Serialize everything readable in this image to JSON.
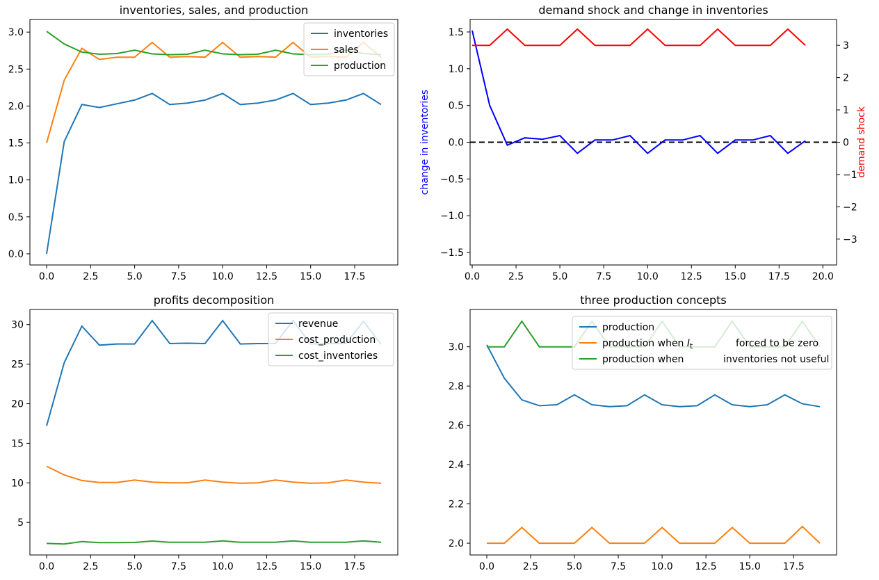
{
  "figure": {
    "background": "#ffffff"
  },
  "chart_data": [
    {
      "id": "inventories-sales-production",
      "type": "line",
      "title": "inventories, sales, and production",
      "xlabel": "",
      "ylabel": "",
      "grid": false,
      "legend_position": "upper right",
      "x": [
        0,
        1,
        2,
        3,
        4,
        5,
        6,
        7,
        8,
        9,
        10,
        11,
        12,
        13,
        14,
        15,
        16,
        17,
        18,
        19
      ],
      "xlim": [
        -0.95,
        19.95
      ],
      "ylim": [
        -0.151,
        3.171
      ],
      "xticks": {
        "values": [
          0,
          2.5,
          5,
          7.5,
          10,
          12.5,
          15,
          17.5
        ],
        "labels": [
          "0.0",
          "2.5",
          "5.0",
          "7.5",
          "10.0",
          "12.5",
          "15.0",
          "17.5"
        ]
      },
      "yticks": {
        "values": [
          0,
          0.5,
          1,
          1.5,
          2,
          2.5,
          3
        ],
        "labels": [
          "0.0",
          "0.5",
          "1.0",
          "1.5",
          "2.0",
          "2.5",
          "3.0"
        ]
      },
      "series": [
        {
          "name": "inventories",
          "color": "#1f77b4",
          "values": [
            0.0,
            1.52,
            2.02,
            1.98,
            2.03,
            2.08,
            2.17,
            2.02,
            2.04,
            2.08,
            2.17,
            2.02,
            2.04,
            2.08,
            2.17,
            2.02,
            2.04,
            2.08,
            2.17,
            2.02
          ]
        },
        {
          "name": "sales",
          "color": "#ff7f0e",
          "values": [
            1.5,
            2.35,
            2.78,
            2.63,
            2.66,
            2.66,
            2.86,
            2.66,
            2.67,
            2.66,
            2.86,
            2.66,
            2.67,
            2.66,
            2.86,
            2.66,
            2.67,
            2.66,
            2.86,
            2.66
          ]
        },
        {
          "name": "production",
          "color": "#2ca02c",
          "values": [
            3.01,
            2.84,
            2.73,
            2.7,
            2.71,
            2.755,
            2.705,
            2.695,
            2.7,
            2.755,
            2.705,
            2.695,
            2.7,
            2.755,
            2.705,
            2.695,
            2.7,
            2.755,
            2.71,
            2.695
          ]
        }
      ],
      "legend": {
        "entries": [
          {
            "segments": [
              {
                "t": "inventories"
              }
            ]
          },
          {
            "segments": [
              {
                "t": "sales"
              }
            ]
          },
          {
            "segments": [
              {
                "t": "production"
              }
            ]
          }
        ]
      }
    },
    {
      "id": "demand-shock-change-in-inventories",
      "type": "line",
      "title": "demand shock and change in inventories",
      "ylabel_left": {
        "text": "change in inventories",
        "color": "#0000ff"
      },
      "ylabel_right": {
        "text": "demand shock",
        "color": "#ff0000"
      },
      "grid": false,
      "x": [
        0,
        1,
        2,
        3,
        4,
        5,
        6,
        7,
        8,
        9,
        10,
        11,
        12,
        13,
        14,
        15,
        16,
        17,
        18,
        19
      ],
      "xlim": [
        -0.12,
        20.78
      ],
      "ylim": [
        -1.67,
        1.67
      ],
      "ylim_right": [
        -3.8,
        3.8
      ],
      "xticks": {
        "values": [
          0,
          2.5,
          5,
          7.5,
          10,
          12.5,
          15,
          17.5,
          20
        ],
        "labels": [
          "0.0",
          "2.5",
          "5.0",
          "7.5",
          "10.0",
          "12.5",
          "15.0",
          "17.5",
          "20.0"
        ]
      },
      "yticks": {
        "values": [
          -1.5,
          -1,
          -0.5,
          0,
          0.5,
          1,
          1.5
        ],
        "labels": [
          "−1.5",
          "−1.0",
          "−0.5",
          "0.0",
          "0.5",
          "1.0",
          "1.5"
        ]
      },
      "yticks_right": {
        "values": [
          -3,
          -2,
          -1,
          0,
          1,
          2,
          3
        ],
        "labels": [
          "−3",
          "−2",
          "−1",
          "0",
          "1",
          "2",
          "3"
        ]
      },
      "series": [
        {
          "name": "zero line",
          "color": "#000000",
          "dash": true,
          "span": "full",
          "value": 0
        },
        {
          "name": "change in inventories",
          "color": "#0000ff",
          "values": [
            1.52,
            0.5,
            -0.04,
            0.06,
            0.04,
            0.09,
            -0.15,
            0.03,
            0.03,
            0.09,
            -0.15,
            0.03,
            0.03,
            0.09,
            -0.15,
            0.03,
            0.03,
            0.09,
            -0.15,
            0.02
          ]
        },
        {
          "name": "demand shock",
          "color": "#ff0000",
          "axis": "right",
          "values": [
            3,
            3,
            3.5,
            3,
            3,
            3,
            3.5,
            3,
            3,
            3,
            3.5,
            3,
            3,
            3,
            3.5,
            3,
            3,
            3,
            3.5,
            3
          ]
        }
      ]
    },
    {
      "id": "profits-decomposition",
      "type": "line",
      "title": "profits decomposition",
      "grid": false,
      "legend_position": "upper right",
      "x": [
        0,
        1,
        2,
        3,
        4,
        5,
        6,
        7,
        8,
        9,
        10,
        11,
        12,
        13,
        14,
        15,
        16,
        17,
        18,
        19
      ],
      "xlim": [
        -0.95,
        19.95
      ],
      "ylim": [
        0.89,
        31.91
      ],
      "xticks": {
        "values": [
          0,
          2.5,
          5,
          7.5,
          10,
          12.5,
          15,
          17.5
        ],
        "labels": [
          "0.0",
          "2.5",
          "5.0",
          "7.5",
          "10.0",
          "12.5",
          "15.0",
          "17.5"
        ]
      },
      "yticks": {
        "values": [
          5,
          10,
          15,
          20,
          25,
          30
        ],
        "labels": [
          "5",
          "10",
          "15",
          "20",
          "25",
          "30"
        ]
      },
      "series": [
        {
          "name": "revenue",
          "color": "#1f77b4",
          "values": [
            17.2,
            25.2,
            29.8,
            27.4,
            27.55,
            27.55,
            30.5,
            27.6,
            27.65,
            27.6,
            30.5,
            27.55,
            27.6,
            27.6,
            30.5,
            27.55,
            27.6,
            27.6,
            30.4,
            27.5
          ]
        },
        {
          "name": "cost_production",
          "color": "#ff7f0e",
          "values": [
            12.1,
            11.0,
            10.3,
            10.05,
            10.05,
            10.35,
            10.1,
            10.0,
            10.0,
            10.35,
            10.1,
            9.95,
            10.0,
            10.35,
            10.1,
            9.95,
            10.0,
            10.35,
            10.1,
            9.95
          ]
        },
        {
          "name": "cost_inventories",
          "color": "#2ca02c",
          "values": [
            2.35,
            2.28,
            2.58,
            2.45,
            2.45,
            2.47,
            2.65,
            2.5,
            2.5,
            2.5,
            2.67,
            2.5,
            2.5,
            2.5,
            2.67,
            2.5,
            2.5,
            2.5,
            2.67,
            2.5
          ]
        }
      ],
      "legend": {
        "entries": [
          {
            "segments": [
              {
                "t": "revenue"
              }
            ]
          },
          {
            "segments": [
              {
                "t": "cost_production"
              }
            ]
          },
          {
            "segments": [
              {
                "t": "cost_inventories"
              }
            ]
          }
        ]
      }
    },
    {
      "id": "three-production-concepts",
      "type": "line",
      "title": "three production concepts",
      "grid": false,
      "legend_position": "upper center",
      "x": [
        0,
        1,
        2,
        3,
        4,
        5,
        6,
        7,
        8,
        9,
        10,
        11,
        12,
        13,
        14,
        15,
        16,
        17,
        18,
        19
      ],
      "xlim": [
        -0.95,
        19.95
      ],
      "ylim": [
        1.94,
        3.19
      ],
      "xticks": {
        "values": [
          0,
          2.5,
          5,
          7.5,
          10,
          12.5,
          15,
          17.5
        ],
        "labels": [
          "0.0",
          "2.5",
          "5.0",
          "7.5",
          "10.0",
          "12.5",
          "15.0",
          "17.5"
        ]
      },
      "yticks": {
        "values": [
          2.0,
          2.2,
          2.4,
          2.6,
          2.8,
          3.0
        ],
        "labels": [
          "2.0",
          "2.2",
          "2.4",
          "2.6",
          "2.8",
          "3.0"
        ]
      },
      "series": [
        {
          "name": "production",
          "color": "#1f77b4",
          "values": [
            3.01,
            2.84,
            2.73,
            2.7,
            2.705,
            2.755,
            2.705,
            2.695,
            2.7,
            2.755,
            2.705,
            2.695,
            2.7,
            2.755,
            2.705,
            2.695,
            2.705,
            2.755,
            2.71,
            2.695
          ]
        },
        {
          "name": "production when I_t forced to be zero",
          "color": "#ff7f0e",
          "values": [
            2.0,
            2.0,
            2.08,
            2.0,
            2.0,
            2.0,
            2.08,
            2.0,
            2.0,
            2.0,
            2.08,
            2.0,
            2.0,
            2.0,
            2.08,
            2.0,
            2.0,
            2.0,
            2.085,
            2.0
          ]
        },
        {
          "name": "production when inventories not useful",
          "color": "#2ca02c",
          "values": [
            3.0,
            3.0,
            3.13,
            3.0,
            3.0,
            3.0,
            3.13,
            3.0,
            3.0,
            3.0,
            3.13,
            3.0,
            3.0,
            3.0,
            3.13,
            3.0,
            3.0,
            3.0,
            3.13,
            3.0
          ]
        }
      ],
      "legend": {
        "entries": [
          {
            "segments": [
              {
                "t": "production"
              }
            ]
          },
          {
            "segments": [
              {
                "t": "production when  "
              },
              {
                "t": "I",
                "italic": true
              },
              {
                "t": "t",
                "sub": true
              },
              {
                "t": "forced to be zero",
                "x": 192
              }
            ]
          },
          {
            "segments": [
              {
                "t": "production when"
              },
              {
                "t": "inventories not useful",
                "x": 174
              }
            ]
          }
        ]
      }
    }
  ]
}
